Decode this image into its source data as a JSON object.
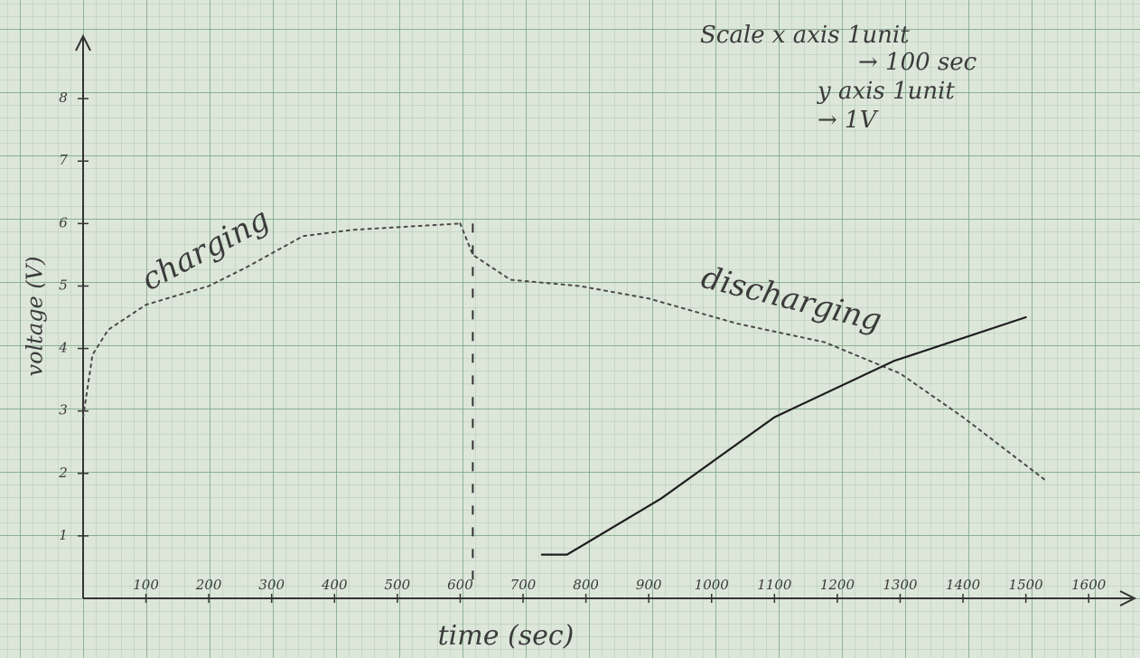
{
  "chart_data": {
    "type": "line",
    "x_label": "time (sec)",
    "y_label": "voltage (V)",
    "scale_note": [
      "Scale x axis 1unit",
      "→ 100 sec",
      "y axis 1unit",
      "→ 1V"
    ],
    "xlim": [
      0,
      1650
    ],
    "ylim": [
      0,
      9
    ],
    "xticks": [
      100,
      200,
      300,
      400,
      500,
      600,
      700,
      800,
      900,
      1000,
      1100,
      1200,
      1300,
      1400,
      1500,
      1600
    ],
    "yticks": [
      1,
      2,
      3,
      4,
      5,
      6,
      7,
      8
    ],
    "vline_x": 620,
    "series": [
      {
        "name": "charging",
        "color": "#4a4a4a",
        "dotted": true,
        "x": [
          0,
          15,
          40,
          100,
          200,
          260,
          350,
          430,
          600
        ],
        "values": [
          2.9,
          3.9,
          4.3,
          4.7,
          5.0,
          5.3,
          5.8,
          5.9,
          6.0
        ]
      },
      {
        "name": "discharging",
        "color": "#4a4a4a",
        "dotted": true,
        "x": [
          600,
          620,
          680,
          790,
          900,
          1040,
          1180,
          1300,
          1400,
          1530
        ],
        "values": [
          6.0,
          5.5,
          5.1,
          5.0,
          4.8,
          4.4,
          4.1,
          3.6,
          2.9,
          1.9
        ]
      },
      {
        "color": "#1e1e1e",
        "dotted": false,
        "x": [
          730,
          770,
          920,
          1100,
          1290,
          1500
        ],
        "values": [
          0.7,
          0.7,
          1.6,
          2.9,
          3.8,
          4.5
        ]
      }
    ]
  }
}
